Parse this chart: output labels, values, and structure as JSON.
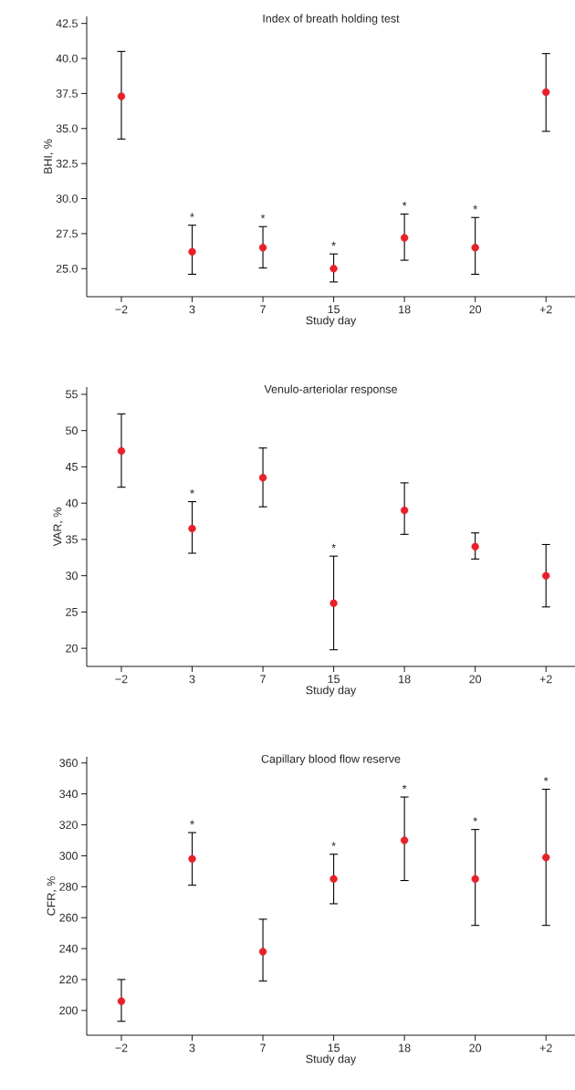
{
  "chart_data": [
    {
      "type": "scatter",
      "title": "Index of  breath holding test",
      "xlabel": "Study day",
      "ylabel": "BHI, %",
      "marker": "circle",
      "color": "#e8202a",
      "categories": [
        "−2",
        "3",
        "7",
        "15",
        "18",
        "20",
        "+2"
      ],
      "values": [
        37.3,
        26.2,
        26.5,
        25.0,
        27.2,
        26.5,
        37.6
      ],
      "errors": [
        [
          34.25,
          40.5
        ],
        [
          24.6,
          28.1
        ],
        [
          25.05,
          28.0
        ],
        [
          24.05,
          26.05
        ],
        [
          25.6,
          28.9
        ],
        [
          24.6,
          28.65
        ],
        [
          34.8,
          40.35
        ]
      ],
      "ylim": [
        23,
        43
      ],
      "yticks": [
        {
          "value": 25,
          "label": "25.0"
        },
        {
          "value": 27.5,
          "label": "27.5"
        },
        {
          "value": 30,
          "label": "30.0"
        },
        {
          "value": 32.5,
          "label": "32.5"
        },
        {
          "value": 35,
          "label": "35.0"
        },
        {
          "value": 37.5,
          "label": "37.5"
        },
        {
          "value": 40,
          "label": "40.0"
        },
        {
          "value": 42.5,
          "label": "42.5"
        }
      ],
      "annotations": [
        {
          "text": "*",
          "x": "3",
          "y": 28.1
        },
        {
          "text": "*",
          "x": "7",
          "y": 28.0
        },
        {
          "text": "*",
          "x": "15",
          "y": 26.05
        },
        {
          "text": "*",
          "x": "18",
          "y": 28.9
        },
        {
          "text": "*",
          "x": "20",
          "y": 28.65
        }
      ]
    },
    {
      "type": "scatter",
      "title": "Venulo-arteriolar response",
      "xlabel": "Study day",
      "ylabel": "VAR, %",
      "marker": "circle",
      "color": "#e8202a",
      "categories": [
        "−2",
        "3",
        "7",
        "15",
        "18",
        "20",
        "+2"
      ],
      "values": [
        47.2,
        36.5,
        43.5,
        26.2,
        39.0,
        34.0,
        30.0
      ],
      "errors": [
        [
          42.2,
          52.3
        ],
        [
          33.1,
          40.2
        ],
        [
          39.5,
          47.6
        ],
        [
          19.8,
          32.7
        ],
        [
          35.7,
          42.8
        ],
        [
          32.3,
          35.9
        ],
        [
          25.7,
          34.3
        ]
      ],
      "ylim": [
        17.5,
        56
      ],
      "yticks": [
        20,
        25,
        30,
        35,
        40,
        45,
        50,
        55
      ],
      "annotations": [
        {
          "text": "*",
          "x": "3",
          "y": 40.2
        },
        {
          "text": "*",
          "x": "15",
          "y": 32.7
        }
      ]
    },
    {
      "type": "scatter",
      "title": "Capillary blood flow reserve",
      "xlabel": "Study day",
      "ylabel": "CFR, %",
      "marker": "circle",
      "color": "#e8202a",
      "categories": [
        "−2",
        "3",
        "7",
        "15",
        "18",
        "20",
        "+2"
      ],
      "values": [
        206,
        298,
        238,
        285,
        310,
        285,
        299
      ],
      "errors": [
        [
          193,
          220
        ],
        [
          281,
          315
        ],
        [
          219,
          259
        ],
        [
          269,
          301
        ],
        [
          284,
          338
        ],
        [
          255,
          317
        ],
        [
          255,
          343
        ]
      ],
      "ylim": [
        184,
        364
      ],
      "yticks": [
        200,
        220,
        240,
        260,
        280,
        300,
        320,
        340,
        360
      ],
      "annotations": [
        {
          "text": "*",
          "x": "3",
          "y": 315
        },
        {
          "text": "*",
          "x": "15",
          "y": 301
        },
        {
          "text": "*",
          "x": "18",
          "y": 338
        },
        {
          "text": "*",
          "x": "20",
          "y": 317
        },
        {
          "text": "*",
          "x": "+2",
          "y": 343
        }
      ]
    }
  ]
}
